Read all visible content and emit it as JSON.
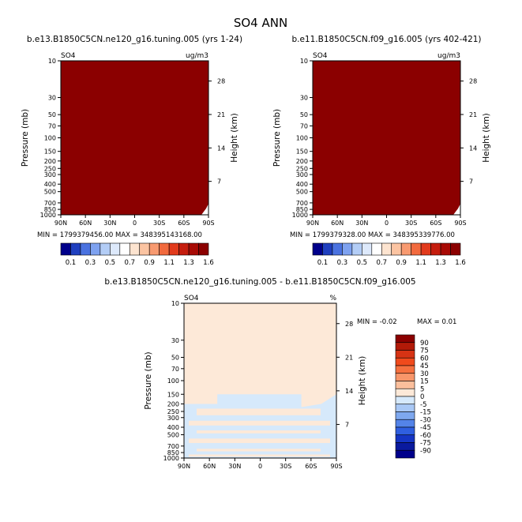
{
  "figure_title": "SO4 ANN",
  "chart_data": [
    {
      "type": "heatmap",
      "title": "b.e13.B1850C5CN.ne120_g16.tuning.005 (yrs 1-24)",
      "variable": "SO4",
      "units": "ug/m3",
      "ylabel_left": "Pressure (mb)",
      "ylabel_right": "Height (km)",
      "x_ticks": [
        "90N",
        "60N",
        "30N",
        "0",
        "30S",
        "60S",
        "90S"
      ],
      "y_ticks": [
        "10",
        "30",
        "50",
        "70",
        "100",
        "150",
        "200",
        "250",
        "300",
        "400",
        "500",
        "700",
        "850",
        "1000"
      ],
      "height_ticks": [
        "28",
        "21",
        "14",
        "7"
      ],
      "ylim": [
        10,
        1000
      ],
      "stats": "MIN = 1799379456.00   MAX = 348395143168.00",
      "fill_color": "#8b0000",
      "note_color": "#ffffff"
    },
    {
      "type": "heatmap",
      "title": "b.e11.B1850C5CN.f09_g16.005 (yrs 402-421)",
      "variable": "SO4",
      "units": "ug/m3",
      "ylabel_left": "Pressure (mb)",
      "ylabel_right": "Height (km)",
      "x_ticks": [
        "90N",
        "60N",
        "30N",
        "0",
        "30S",
        "60S",
        "90S"
      ],
      "y_ticks": [
        "10",
        "30",
        "50",
        "70",
        "100",
        "150",
        "200",
        "250",
        "300",
        "400",
        "500",
        "700",
        "850",
        "1000"
      ],
      "height_ticks": [
        "28",
        "21",
        "14",
        "7"
      ],
      "ylim": [
        10,
        1000
      ],
      "stats": "MIN = 1799379328.00   MAX = 348395339776.00",
      "fill_color": "#8b0000",
      "note_color": "#ffffff"
    },
    {
      "type": "heatmap",
      "title": "b.e13.B1850C5CN.ne120_g16.tuning.005 - b.e11.B1850C5CN.f09_g16.005",
      "variable": "SO4",
      "units": "%",
      "ylabel_left": "Pressure (mb)",
      "ylabel_right": "Height (km)",
      "x_ticks": [
        "90N",
        "60N",
        "30N",
        "0",
        "30S",
        "60S",
        "90S"
      ],
      "y_ticks": [
        "10",
        "30",
        "50",
        "70",
        "100",
        "150",
        "200",
        "250",
        "300",
        "400",
        "500",
        "700",
        "850",
        "1000"
      ],
      "height_ticks": [
        "28",
        "21",
        "14",
        "7"
      ],
      "ylim": [
        10,
        1000
      ],
      "stats_min": "MIN =   -0.02",
      "stats_max": "MAX =     0.01",
      "fill_color": "#fde9d8",
      "band_color": "#d6e9fb"
    }
  ],
  "top_colorbar": {
    "labels": [
      "0.1",
      "0.3",
      "0.5",
      "0.7",
      "0.9",
      "1.1",
      "1.3",
      "1.6"
    ],
    "colors": [
      "#00008b",
      "#1f3fbf",
      "#4a72e0",
      "#7ea2f0",
      "#b3cdf6",
      "#dde9fb",
      "#ffffff",
      "#fde4d0",
      "#fbc4a2",
      "#f89a70",
      "#f26a3e",
      "#e23a1c",
      "#c51d0e",
      "#a80a05",
      "#8b0000"
    ]
  },
  "diff_colorbar": {
    "labels": [
      "90",
      "75",
      "60",
      "45",
      "30",
      "15",
      "5",
      "0",
      "-5",
      "-15",
      "-30",
      "-45",
      "-60",
      "-75",
      "-90"
    ],
    "colors": [
      "#8b0000",
      "#b21a08",
      "#d63314",
      "#f04a1c",
      "#f5703f",
      "#f8966a",
      "#fbbf9c",
      "#fde9d8",
      "#d6e9fb",
      "#a9c8f5",
      "#7ea8ef",
      "#5484e8",
      "#2f5fe0",
      "#1535c4",
      "#0a1a9e",
      "#00008b"
    ]
  }
}
